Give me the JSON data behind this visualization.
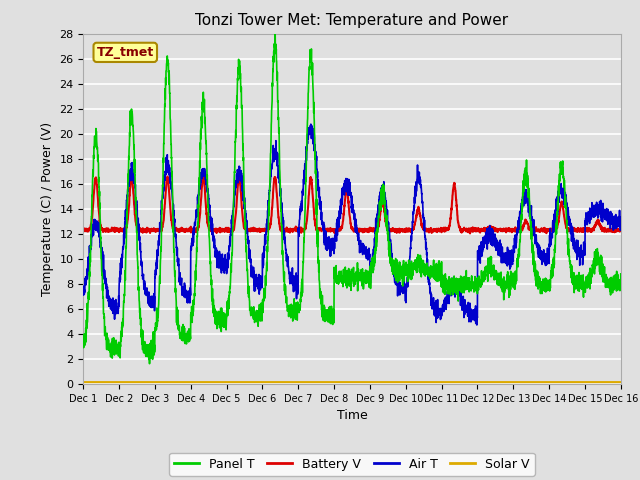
{
  "title": "Tonzi Tower Met: Temperature and Power",
  "xlabel": "Time",
  "ylabel": "Temperature (C) / Power (V)",
  "ylim": [
    0,
    28
  ],
  "yticks": [
    0,
    2,
    4,
    6,
    8,
    10,
    12,
    14,
    16,
    18,
    20,
    22,
    24,
    26,
    28
  ],
  "xlim": [
    0,
    15
  ],
  "xtick_labels": [
    "Dec 1",
    "Dec 2",
    "Dec 3",
    "Dec 4",
    "Dec 5",
    "Dec 6",
    "Dec 7",
    "Dec 8",
    "Dec 9",
    "Dec 10",
    "Dec 11",
    "Dec 12",
    "Dec 13",
    "Dec 14",
    "Dec 15",
    "Dec 16"
  ],
  "xtick_positions": [
    0,
    1,
    2,
    3,
    4,
    5,
    6,
    7,
    8,
    9,
    10,
    11,
    12,
    13,
    14,
    15
  ],
  "panel_T_color": "#00cc00",
  "battery_V_color": "#dd0000",
  "air_T_color": "#0000cc",
  "solar_V_color": "#ddaa00",
  "bg_color": "#e0e0e0",
  "plot_bg_color": "#e0e0e0",
  "grid_color": "#ffffff",
  "label_box_color": "#ffff99",
  "label_box_edge": "#aa8800",
  "label_text": "TZ_tmet",
  "label_text_color": "#880000",
  "legend_entries": [
    "Panel T",
    "Battery V",
    "Air T",
    "Solar V"
  ],
  "title_fontsize": 11,
  "axis_fontsize": 9,
  "tick_fontsize": 8,
  "legend_fontsize": 9
}
